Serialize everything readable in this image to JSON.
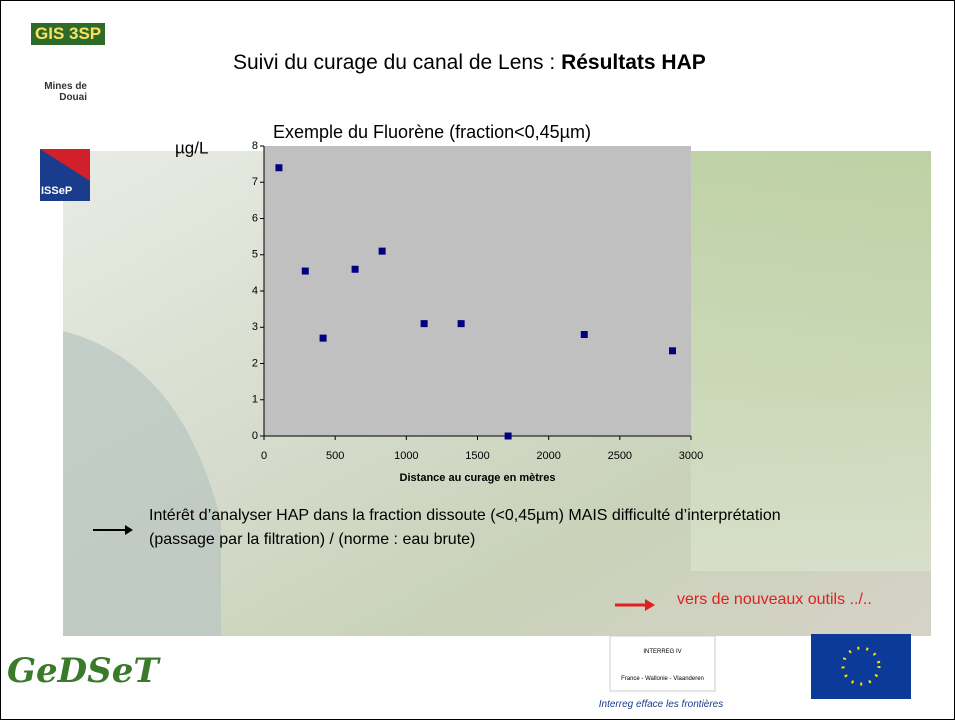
{
  "slide": {
    "logo_gis": "GIS 3SP",
    "logo_mines": "Mines de Douai",
    "logo_issep": "ISSeP",
    "title_prefix": "Suivi du curage du canal de Lens : ",
    "title_bold": "Résultats HAP",
    "bullet": "Intérêt d’analyser HAP dans la fraction dissoute (<0,45µm) MAIS difficulté d’interprétation (passage par la filtration) / (norme : eau brute)",
    "outlook": "vers de nouveaux outils ../..",
    "logo_gedset": "GeDSeT",
    "interreg": "INTERREG IV",
    "interreg_region": "France - Wallonie - Vlaanderen",
    "footer": "Interreg efface les frontières"
  },
  "chart_data": {
    "type": "scatter",
    "title": "Exemple du Fluorène (fraction<0,45µm)",
    "y_label": "µg/L",
    "x_label": "Distance au curage en mètres",
    "x": [
      105,
      290,
      415,
      640,
      830,
      1125,
      1385,
      1715,
      2250,
      2870
    ],
    "values": [
      7.4,
      4.55,
      2.7,
      4.6,
      5.1,
      3.1,
      3.1,
      0,
      2.8,
      2.35
    ],
    "color": "#000080",
    "xlim": [
      0,
      3000
    ],
    "ylim": [
      0,
      8
    ],
    "xticks": [
      0,
      500,
      1000,
      1500,
      2000,
      2500,
      3000
    ],
    "yticks": [
      0,
      1,
      2,
      3,
      4,
      5,
      6,
      7,
      8
    ],
    "plot_background": "#c0c0c0"
  }
}
